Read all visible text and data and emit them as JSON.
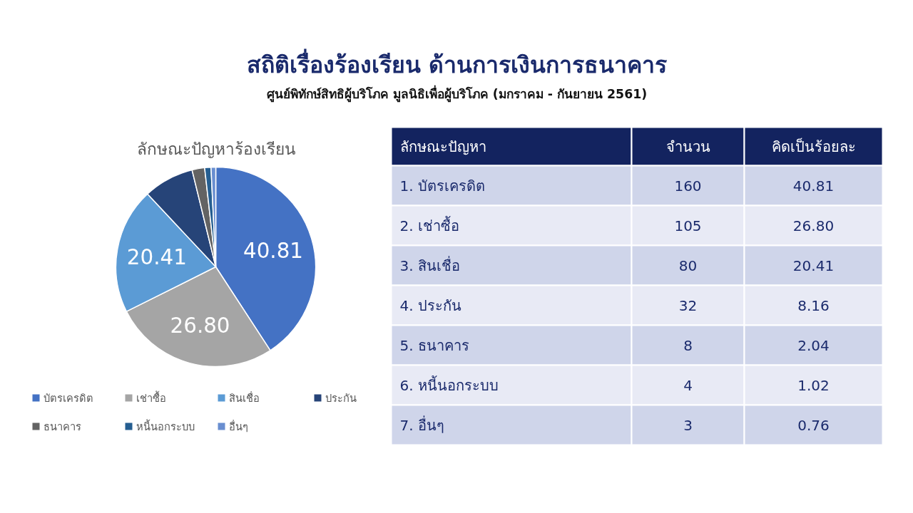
{
  "chart_data": [
    {
      "type": "pie",
      "title": "ลักษณะปัญหาร้องเรียน",
      "categories": [
        "บัตรเครดิต",
        "เช่าซื้อ",
        "สินเชื่อ",
        "ประกัน",
        "ธนาคาร",
        "หนี้นอกระบบ",
        "อื่นๆ"
      ],
      "values": [
        40.81,
        26.8,
        20.41,
        8.16,
        2.04,
        1.02,
        0.76
      ],
      "colors": [
        "#4472c4",
        "#a5a5a5",
        "#5b9bd5",
        "#264478",
        "#636363",
        "#255e91",
        "#698ed0"
      ],
      "value_labels": [
        "40.81",
        "26.80",
        "20.41",
        null,
        null,
        null,
        null
      ],
      "legend": "bottom"
    },
    {
      "type": "other",
      "title": "สถิติเรื่องร้องเรียน ด้านการเงินการธนาคาร",
      "subtitle": "ศูนย์พิทักษ์สิทธิผู้บริโภค มูลนิธิเพื่อผู้บริโภค (มกราคม - กันยายน 2561)",
      "annotations": [
        "ลักษณะปัญหา",
        "จำนวน",
        "คิดเป็นร้อยละ",
        "1.  บัตรเครดิต",
        "160",
        "40.81",
        "2.  เช่าซื้อ",
        "105",
        "26.80",
        "3.  สินเชื่อ",
        "80",
        "20.41",
        "4.  ประกัน",
        "32",
        "8.16",
        "5.  ธนาคาร",
        "8",
        "2.04",
        "6.  หนี้นอกระบบ",
        "4",
        "1.02",
        "7.  อื่นๆ",
        "3",
        "0.76"
      ]
    }
  ]
}
